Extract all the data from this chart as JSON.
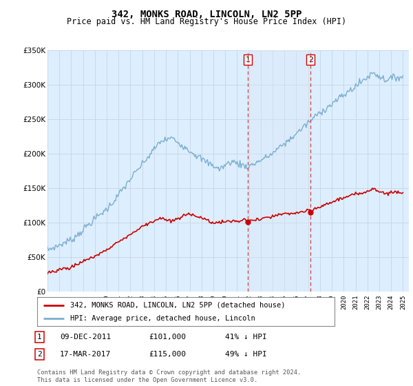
{
  "title": "342, MONKS ROAD, LINCOLN, LN2 5PP",
  "subtitle": "Price paid vs. HM Land Registry's House Price Index (HPI)",
  "legend_label_red": "342, MONKS ROAD, LINCOLN, LN2 5PP (detached house)",
  "legend_label_blue": "HPI: Average price, detached house, Lincoln",
  "annotation1_label": "1",
  "annotation1_date": "09-DEC-2011",
  "annotation1_price": "£101,000",
  "annotation1_hpi": "41% ↓ HPI",
  "annotation1_year": 2011.92,
  "annotation1_value": 101000,
  "annotation2_label": "2",
  "annotation2_date": "17-MAR-2017",
  "annotation2_price": "£115,000",
  "annotation2_hpi": "49% ↓ HPI",
  "annotation2_year": 2017.21,
  "annotation2_value": 115000,
  "footer": "Contains HM Land Registry data © Crown copyright and database right 2024.\nThis data is licensed under the Open Government Licence v3.0.",
  "ylim": [
    0,
    350000
  ],
  "xlim_start": 1995.0,
  "xlim_end": 2025.5,
  "background_color": "#ffffff",
  "plot_bg_color": "#ddeeff",
  "grid_color": "#c8d8e8",
  "red_color": "#cc0000",
  "blue_color": "#7aadcf",
  "vline_color": "#cc4444",
  "shade_color": "#d8e8f5"
}
